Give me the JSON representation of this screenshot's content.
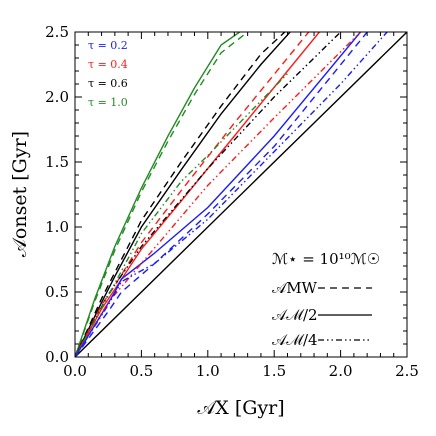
{
  "chart_data": {
    "type": "line",
    "xlabel": "𝒜X [Gyr]",
    "ylabel": "𝒜onset [Gyr]",
    "xlim": [
      0,
      2.5
    ],
    "ylim": [
      0,
      2.5
    ],
    "x_ticks": [
      "0.0",
      "0.5",
      "1.0",
      "1.5",
      "2.0",
      "2.5"
    ],
    "y_ticks": [
      "0.0",
      "0.5",
      "1.0",
      "1.5",
      "2.0",
      "2.5"
    ],
    "grid": false,
    "tau_labels": [
      {
        "text": "τ = 0.2",
        "color": "#1a1aff"
      },
      {
        "text": "τ = 0.4",
        "color": "#ff1a1a"
      },
      {
        "text": "τ = 0.6",
        "color": "#000000"
      },
      {
        "text": "τ = 1.0",
        "color": "#228b22"
      }
    ],
    "legend": {
      "position": "lower-right",
      "title": "ℳ⋆ = 10¹⁰ℳ☉",
      "entries": [
        {
          "label": "𝒜MW",
          "style": "dashed"
        },
        {
          "label": "𝒜ℳ/2",
          "style": "solid"
        },
        {
          "label": "𝒜ℳ/4",
          "style": "dashdotdot"
        }
      ]
    },
    "series": [
      {
        "color": "#000000",
        "style": "solid",
        "x": [
          0,
          2.5
        ],
        "y": [
          0,
          2.5
        ]
      },
      {
        "color": "#228b22",
        "style": "dashed",
        "x": [
          0,
          0.15,
          0.3,
          0.5,
          0.7,
          0.9,
          1.1,
          1.3
        ],
        "y": [
          0,
          0.43,
          0.82,
          1.27,
          1.66,
          2.02,
          2.34,
          2.5
        ]
      },
      {
        "color": "#228b22",
        "style": "solid",
        "x": [
          0,
          0.15,
          0.3,
          0.5,
          0.7,
          0.9,
          1.1,
          1.24
        ],
        "y": [
          0,
          0.45,
          0.85,
          1.3,
          1.7,
          2.07,
          2.4,
          2.5
        ]
      },
      {
        "color": "#000000",
        "style": "dashed",
        "x": [
          0,
          0.2,
          0.3,
          0.5,
          0.8,
          1.1,
          1.4,
          1.58
        ],
        "y": [
          0,
          0.45,
          0.65,
          1.05,
          1.5,
          1.93,
          2.33,
          2.5
        ]
      },
      {
        "color": "#000000",
        "style": "solid",
        "x": [
          0,
          0.2,
          0.3,
          0.5,
          0.8,
          1.1,
          1.4,
          1.62
        ],
        "y": [
          0,
          0.42,
          0.62,
          1.0,
          1.44,
          1.87,
          2.25,
          2.5
        ]
      },
      {
        "color": "#ff1a1a",
        "style": "dashed",
        "x": [
          0,
          0.2,
          0.3,
          0.5,
          0.8,
          1.2,
          1.6,
          1.76
        ],
        "y": [
          0,
          0.4,
          0.55,
          0.88,
          1.28,
          1.8,
          2.3,
          2.5
        ]
      },
      {
        "color": "#ff1a1a",
        "style": "solid",
        "x": [
          0,
          0.2,
          0.3,
          0.5,
          0.8,
          1.2,
          1.6,
          1.84
        ],
        "y": [
          0,
          0.37,
          0.52,
          0.83,
          1.2,
          1.7,
          2.2,
          2.5
        ]
      },
      {
        "color": "#1a1aff",
        "style": "solid",
        "x": [
          0,
          0.2,
          0.3,
          0.35,
          0.6,
          1.0,
          1.5,
          2.15
        ],
        "y": [
          0,
          0.33,
          0.5,
          0.6,
          0.8,
          1.15,
          1.7,
          2.5
        ]
      },
      {
        "color": "#1a1aff",
        "style": "dashed",
        "x": [
          0,
          0.25,
          0.35,
          0.6,
          1.0,
          1.5,
          2.2
        ],
        "y": [
          0,
          0.35,
          0.5,
          0.72,
          1.1,
          1.62,
          2.5
        ]
      },
      {
        "color": "#000000",
        "style": "dashdotdot",
        "x": [
          0,
          0.25,
          0.5,
          1.0,
          1.5,
          2.0
        ],
        "y": [
          0,
          0.48,
          0.85,
          1.45,
          2.0,
          2.5
        ]
      },
      {
        "color": "#ff1a1a",
        "style": "dashdotdot",
        "x": [
          0,
          0.25,
          0.5,
          1.0,
          1.5,
          2.15
        ],
        "y": [
          0,
          0.42,
          0.72,
          1.32,
          1.84,
          2.5
        ]
      },
      {
        "color": "#228b22",
        "style": "dashdotdot",
        "x": [
          0,
          0.25,
          0.5,
          0.8,
          1.0,
          1.6
        ],
        "y": [
          0,
          0.47,
          0.95,
          1.35,
          1.55,
          2.18
        ]
      },
      {
        "color": "#1a1aff",
        "style": "dashdotdot",
        "x": [
          0,
          0.25,
          0.35,
          0.6,
          1.0,
          1.5,
          2.0,
          2.35
        ],
        "y": [
          0,
          0.4,
          0.58,
          0.72,
          1.06,
          1.58,
          2.1,
          2.5
        ]
      }
    ]
  }
}
